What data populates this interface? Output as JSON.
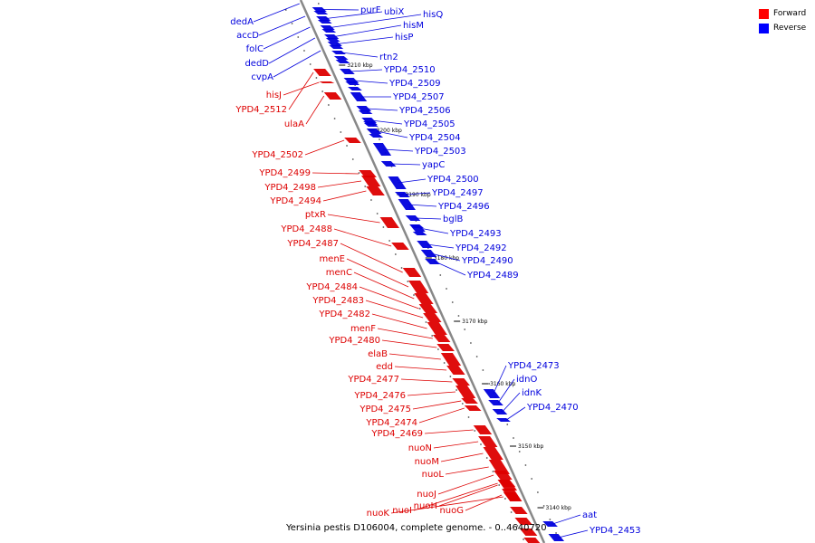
{
  "legend": [
    {
      "label": "Forward",
      "color": "#ff0000"
    },
    {
      "label": "Reverse",
      "color": "#0000ff"
    }
  ],
  "caption": "Yersinia pestis D106004, complete genome. - 0..4640720",
  "colors": {
    "forward": "#dd0000",
    "reverse": "#0000dd",
    "backbone": "#888888"
  },
  "scale_labels": [
    "3210 kbp",
    "3200 kbp",
    "3190 kbp",
    "3180 kbp",
    "3170 kbp",
    "3160 kbp",
    "3150 kbp",
    "3140 kbp"
  ],
  "genes": {
    "reverse": [
      "purF",
      "ubiX",
      "hisQ",
      "hisM",
      "hisP",
      "rtn2",
      "YPD4_2510",
      "YPD4_2509",
      "YPD4_2507",
      "YPD4_2506",
      "YPD4_2505",
      "YPD4_2504",
      "YPD4_2503",
      "yapC",
      "YPD4_2500",
      "YPD4_2497",
      "YPD4_2496",
      "bglB",
      "YPD4_2493",
      "YPD4_2492",
      "YPD4_2490",
      "YPD4_2489",
      "YPD4_2473",
      "idnO",
      "idnK",
      "YPD4_2470",
      "aat",
      "YPD4_2453",
      "dedA",
      "accD",
      "folC",
      "dedD",
      "cvpA"
    ],
    "forward": [
      "hisJ",
      "YPD4_2512",
      "ulaA",
      "YPD4_2502",
      "YPD4_2499",
      "YPD4_2498",
      "YPD4_2494",
      "ptxR",
      "YPD4_2488",
      "YPD4_2487",
      "menE",
      "menC",
      "YPD4_2484",
      "YPD4_2483",
      "YPD4_2482",
      "menF",
      "YPD4_2480",
      "elaB",
      "edd",
      "YPD4_2477",
      "YPD4_2476",
      "YPD4_2475",
      "YPD4_2474",
      "YPD4_2469",
      "nuoN",
      "nuoM",
      "nuoL",
      "nuoJ",
      "nuoH",
      "nuoI",
      "nuoK",
      "nuoG"
    ]
  }
}
